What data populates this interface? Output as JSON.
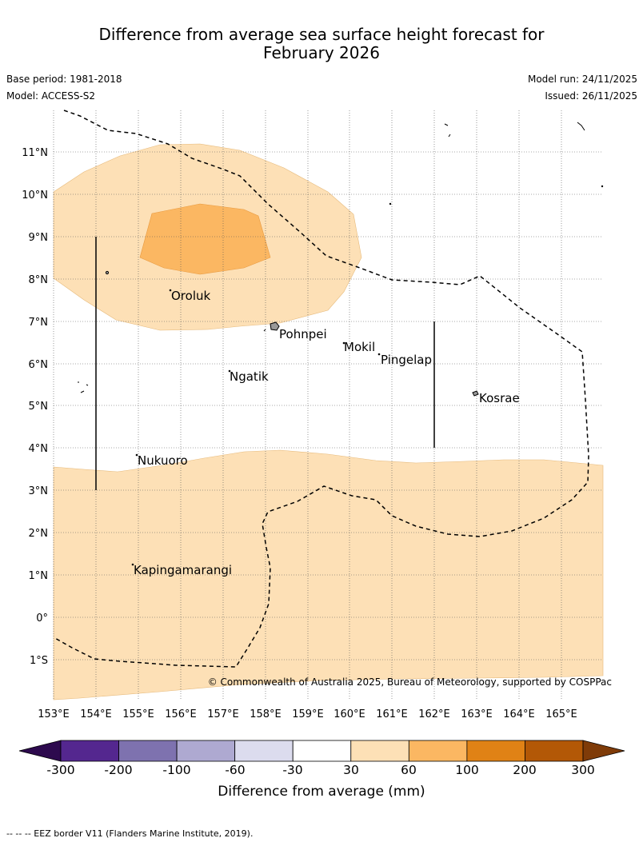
{
  "title_line1": "Difference from average sea surface height forecast for",
  "title_line2": "February 2026",
  "base_period": "Base period: 1981-2018",
  "model": "Model: ACCESS-S2",
  "model_run": "Model run: 24/11/2025",
  "issued": "Issued: 26/11/2025",
  "copyright": "© Commonwealth of Australia 2025, Bureau of Meteorology, supported by COSPPac",
  "lon_labels": [
    "153°E",
    "154°E",
    "155°E",
    "156°E",
    "157°E",
    "158°E",
    "159°E",
    "160°E",
    "161°E",
    "162°E",
    "163°E",
    "164°E",
    "165°E"
  ],
  "lat_labels": [
    "11°N",
    "10°N",
    "9°N",
    "8°N",
    "7°N",
    "6°N",
    "5°N",
    "4°N",
    "3°N",
    "2°N",
    "1°N",
    "0°",
    "1°S"
  ],
  "places": [
    "Oroluk",
    "Pohnpei",
    "Mokil",
    "Pingelap",
    "Ngatik",
    "Kosrae",
    "Nukuoro",
    "Kapingamarangi"
  ],
  "colorbar": {
    "label": "Difference from average (mm)",
    "ticks": [
      "-300",
      "-200",
      "-100",
      "-60",
      "-30",
      "30",
      "60",
      "100",
      "200",
      "300"
    ],
    "colors": [
      "#2d0a4e",
      "#54278f",
      "#7e72af",
      "#aea9d1",
      "#dcdcee",
      "#ffffff",
      "#fde0b6",
      "#fbb762",
      "#e08215",
      "#b35806",
      "#7f3b08"
    ]
  },
  "eez_note": "--  --  -- EEZ border V11 (Flanders Marine Institute, 2019)."
}
